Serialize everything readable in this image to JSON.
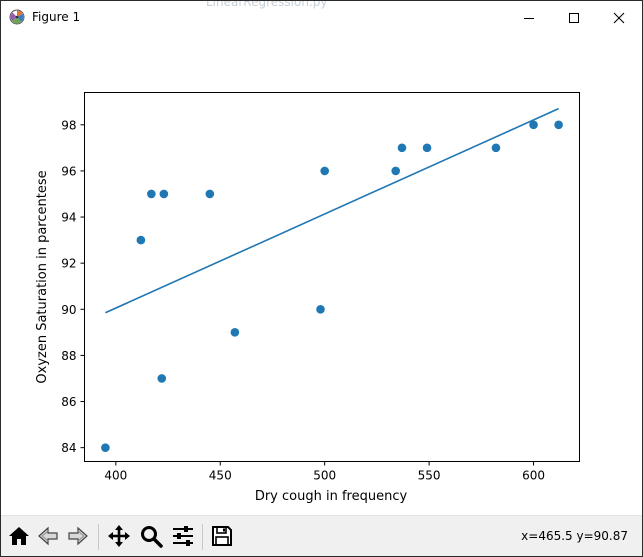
{
  "window": {
    "title": "Figure 1",
    "background_tab_text": "LinearRegression.py"
  },
  "toolbar": {
    "buttons": [
      {
        "name": "home-button",
        "icon": "home-icon"
      },
      {
        "name": "back-button",
        "icon": "arrow-left-icon"
      },
      {
        "name": "forward-button",
        "icon": "arrow-right-icon"
      },
      {
        "name": "pan-button",
        "icon": "move-icon"
      },
      {
        "name": "zoom-button",
        "icon": "magnifier-icon"
      },
      {
        "name": "configure-subplots-button",
        "icon": "sliders-icon"
      },
      {
        "name": "save-button",
        "icon": "floppy-disk-icon"
      }
    ],
    "coords": "x=465.5 y=90.87"
  },
  "chart_data": {
    "type": "scatter",
    "title": "",
    "xlabel": "Dry cough in frequency",
    "ylabel": "Oxyzen Saturation in parcentese",
    "xlim": [
      385,
      622
    ],
    "ylim": [
      83.4,
      99.4
    ],
    "xticks": [
      400,
      450,
      500,
      550,
      600
    ],
    "yticks": [
      84,
      86,
      88,
      90,
      92,
      94,
      96,
      98
    ],
    "grid": false,
    "marker_color": "#1f77b4",
    "points": [
      {
        "x": 395,
        "y": 84
      },
      {
        "x": 412,
        "y": 93
      },
      {
        "x": 417,
        "y": 95
      },
      {
        "x": 422,
        "y": 87
      },
      {
        "x": 423,
        "y": 95
      },
      {
        "x": 445,
        "y": 95
      },
      {
        "x": 457,
        "y": 89
      },
      {
        "x": 498,
        "y": 90
      },
      {
        "x": 500,
        "y": 96
      },
      {
        "x": 534,
        "y": 96
      },
      {
        "x": 537,
        "y": 97
      },
      {
        "x": 549,
        "y": 97
      },
      {
        "x": 582,
        "y": 97
      },
      {
        "x": 600,
        "y": 98
      },
      {
        "x": 612,
        "y": 98
      }
    ],
    "fit_line": {
      "x": [
        395,
        612
      ],
      "y": [
        89.85,
        98.7
      ],
      "color": "#1f77b4"
    }
  }
}
